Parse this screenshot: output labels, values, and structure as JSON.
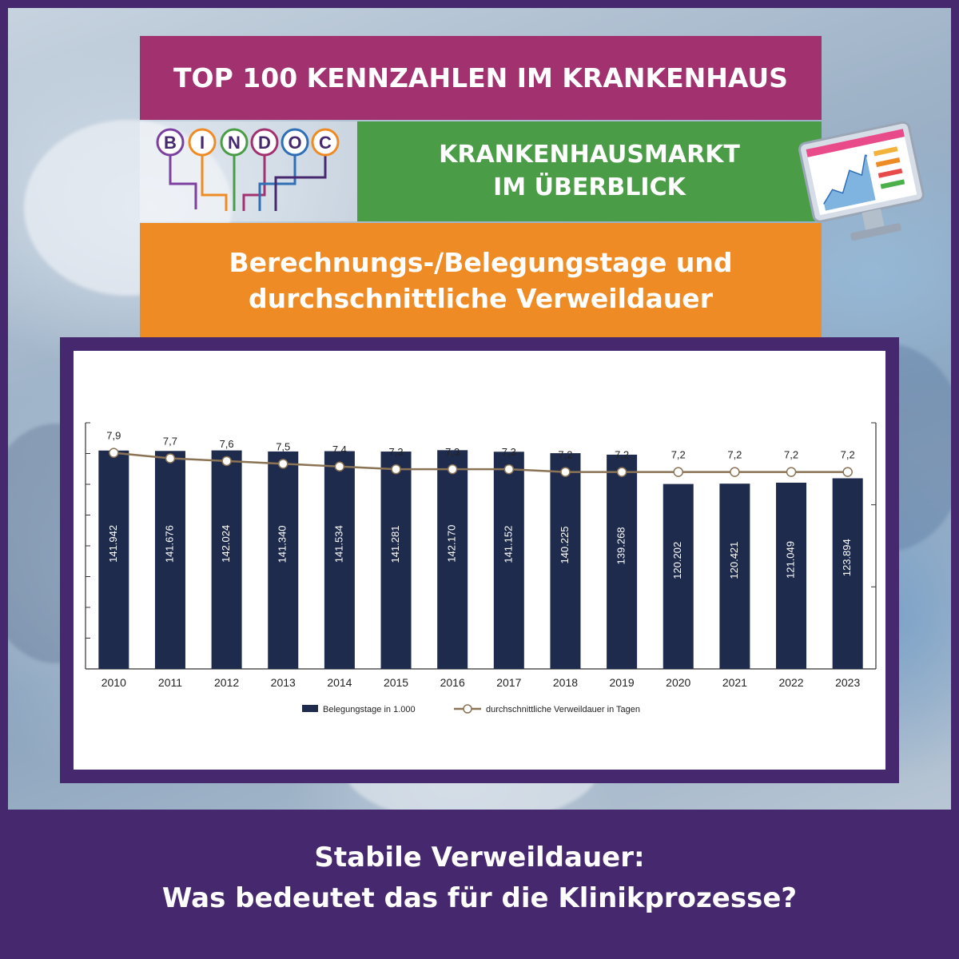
{
  "header": {
    "title": "TOP 100 KENNZAHLEN IM KRANKENHAUS",
    "logo_letters": [
      "B",
      "I",
      "N",
      "D",
      "O",
      "C"
    ],
    "subtitle_line1": "KRANKENHAUSMARKT",
    "subtitle_line2": "IM ÜBERBLICK",
    "topic_line1": "Berechnungs-/Belegungstage und",
    "topic_line2": "durchschnittliche Verweildauer"
  },
  "footer": {
    "line1": "Stabile Verweildauer:",
    "line2": "Was bedeutet das für die Klinikprozesse?"
  },
  "colors": {
    "frame": "#46286e",
    "magenta": "#a2316f",
    "green": "#4a9c47",
    "orange": "#ef8b24",
    "bar": "#1f2b4c",
    "line": "#8b7355"
  },
  "chart_data": {
    "type": "bar",
    "categories": [
      "2010",
      "2011",
      "2012",
      "2013",
      "2014",
      "2015",
      "2016",
      "2017",
      "2018",
      "2019",
      "2020",
      "2021",
      "2022",
      "2023"
    ],
    "series": [
      {
        "name": "Belegungstage in 1.000",
        "type": "bar",
        "values": [
          141942,
          141676,
          142024,
          141340,
          141534,
          141281,
          142170,
          141152,
          140225,
          139268,
          120202,
          120421,
          121049,
          123894
        ],
        "labels": [
          "141.942",
          "141.676",
          "142.024",
          "141.340",
          "141.534",
          "141.281",
          "142.170",
          "141.152",
          "140.225",
          "139.268",
          "120.202",
          "120.421",
          "121.049",
          "123.894"
        ]
      },
      {
        "name": "durchschnittliche Verweildauer in Tagen",
        "type": "line",
        "values": [
          7.9,
          7.7,
          7.6,
          7.5,
          7.4,
          7.3,
          7.3,
          7.3,
          7.2,
          7.2,
          7.2,
          7.2,
          7.2,
          7.2
        ],
        "labels": [
          "7,9",
          "7,7",
          "7,6",
          "7,5",
          "7,4",
          "7,3",
          "7,3",
          "7,3",
          "7,2",
          "7,2",
          "7,2",
          "7,2",
          "7,2",
          "7,2"
        ]
      }
    ],
    "ylim": [
      0,
      160000
    ],
    "y2lim": [
      0,
      9
    ],
    "legend": "bottom",
    "grid": false
  }
}
